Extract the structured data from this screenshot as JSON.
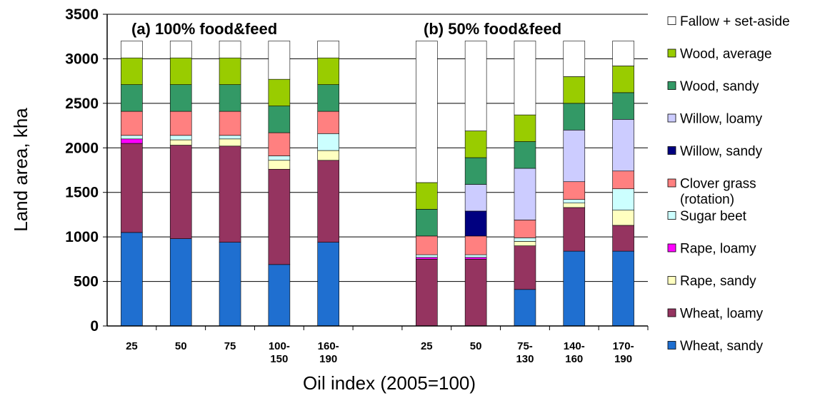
{
  "chart_data": {
    "type": "bar",
    "stacked": true,
    "title": "",
    "xlabel": "Oil index (2005=100)",
    "ylabel": "Land area, kha",
    "ylim": [
      0,
      3500
    ],
    "yticks": [
      0,
      500,
      1000,
      1500,
      2000,
      2500,
      3000,
      3500
    ],
    "grid": true,
    "legend_position": "right",
    "annotations": [
      "(a) 100% food&feed",
      "(b) 50% food&feed"
    ],
    "categories": [
      "25",
      "50",
      "75",
      "100-150",
      "160-190",
      "25",
      "50",
      "75-130",
      "140-160",
      "170-190"
    ],
    "groups": [
      {
        "label": "(a) 100% food&feed",
        "categories": [
          "25",
          "50",
          "75",
          "100-150",
          "160-190"
        ]
      },
      {
        "label": "(b) 50% food&feed",
        "categories": [
          "25",
          "50",
          "75-130",
          "140-160",
          "170-190"
        ]
      }
    ],
    "series": [
      {
        "name": "Wheat, sandy",
        "color": "#1F6FD0",
        "values": [
          1050,
          980,
          940,
          690,
          940,
          0,
          0,
          410,
          840,
          840
        ]
      },
      {
        "name": "Wheat, loamy",
        "color": "#953460",
        "values": [
          1000,
          1050,
          1080,
          1070,
          920,
          750,
          750,
          490,
          490,
          290
        ]
      },
      {
        "name": "Rape, sandy",
        "color": "#FFFFC0",
        "values": [
          0,
          60,
          80,
          100,
          110,
          0,
          0,
          50,
          50,
          170
        ]
      },
      {
        "name": "Rape, loamy",
        "color": "#FF00FF",
        "values": [
          50,
          0,
          0,
          0,
          0,
          20,
          20,
          0,
          0,
          0
        ]
      },
      {
        "name": "Sugar beet",
        "color": "#CCFFFF",
        "values": [
          40,
          50,
          40,
          50,
          190,
          30,
          30,
          40,
          40,
          240
        ]
      },
      {
        "name": "Clover grass\n(rotation)",
        "color": "#FF8080",
        "values": [
          270,
          270,
          270,
          260,
          250,
          210,
          210,
          200,
          200,
          200
        ]
      },
      {
        "name": "Willow, sandy",
        "color": "#000080",
        "values": [
          0,
          0,
          0,
          0,
          0,
          0,
          280,
          0,
          0,
          0
        ]
      },
      {
        "name": "Willow, loamy",
        "color": "#CCCCFF",
        "values": [
          0,
          0,
          0,
          0,
          0,
          0,
          300,
          580,
          580,
          580
        ]
      },
      {
        "name": "Wood, sandy",
        "color": "#339966",
        "values": [
          300,
          300,
          300,
          300,
          300,
          300,
          300,
          300,
          300,
          300
        ]
      },
      {
        "name": "Wood, average",
        "color": "#99CC00",
        "values": [
          300,
          300,
          300,
          300,
          300,
          300,
          300,
          300,
          300,
          300
        ]
      },
      {
        "name": "Fallow + set-aside",
        "color": "#FFFFFF",
        "values": [
          190,
          190,
          190,
          430,
          190,
          1590,
          1010,
          830,
          400,
          280
        ]
      }
    ]
  }
}
